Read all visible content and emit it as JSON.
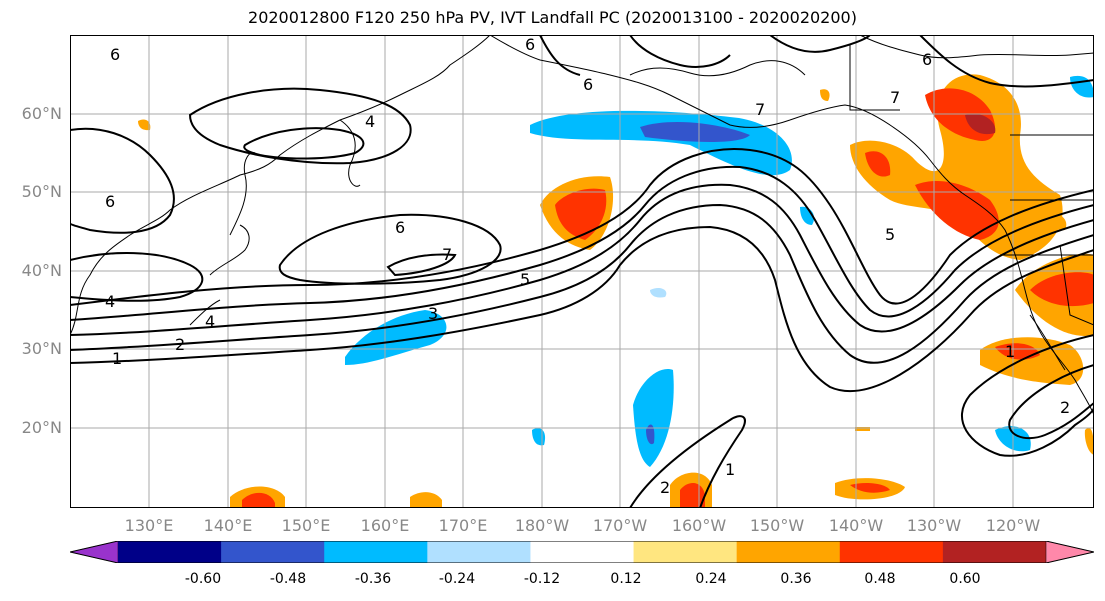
{
  "title": "2020012800 F120 250 hPa PV, IVT Landfall PC (2020013100 - 2020020200)",
  "lat_labels": [
    "60°N",
    "50°N",
    "40°N",
    "30°N",
    "20°N"
  ],
  "lon_labels": [
    "130°E",
    "140°E",
    "150°E",
    "160°E",
    "170°E",
    "180°W",
    "170°W",
    "160°W",
    "150°W",
    "140°W",
    "130°W",
    "120°W"
  ],
  "contour_labels": [
    "6",
    "6",
    "6",
    "7",
    "6",
    "4",
    "4",
    "2",
    "1",
    "6",
    "7",
    "5",
    "4",
    "3",
    "6",
    "7",
    "5",
    "1",
    "2",
    "2",
    "1"
  ],
  "colorbar": {
    "ticks": [
      "-0.60",
      "-0.48",
      "-0.36",
      "-0.24",
      "-0.12",
      "0.12",
      "0.24",
      "0.36",
      "0.48",
      "0.60"
    ],
    "colors": [
      "#9933cc",
      "#000088",
      "#3355cc",
      "#00bbff",
      "#b0e0ff",
      "#ffffff",
      "#ffe680",
      "#ffa500",
      "#ff3300",
      "#b22222",
      "#ff88aa"
    ]
  },
  "colors": {
    "land_border": "#000000",
    "grid": "#aaaaaa",
    "contour": "#000000"
  }
}
